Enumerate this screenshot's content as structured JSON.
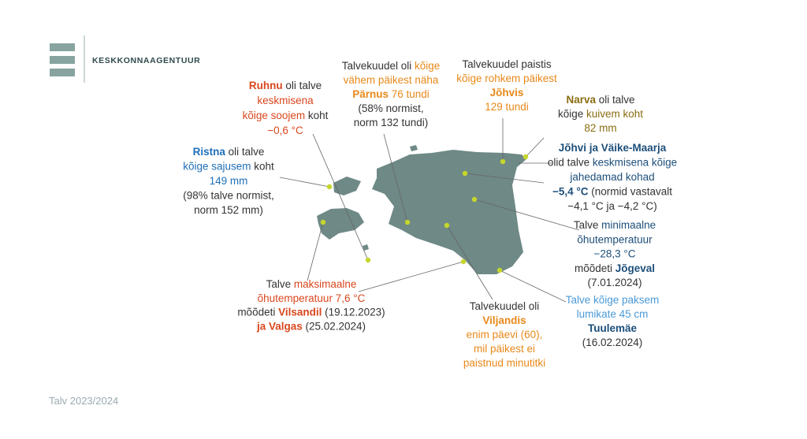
{
  "header": {
    "brand": "KESKKONNAAGENTUUR"
  },
  "footer": "Talv 2023/2024",
  "annotations": [
    {
      "lines": [
        [
          {
            "text": "Ruhnu",
            "color": "#d9471e",
            "bold": true
          },
          " oli talve"
        ],
        [
          {
            "text": "keskmisena",
            "color": "#d9471e"
          }
        ],
        [
          {
            "text": "kõige soojem",
            "color": "#d9471e"
          },
          " koht"
        ],
        [
          {
            "text": "−0,6 °C",
            "color": "#d9471e"
          }
        ]
      ]
    },
    {
      "lines": [
        [
          {
            "text": "Ristna",
            "color": "#1f6fb8",
            "bold": true
          },
          " oli talve"
        ],
        [
          {
            "text": "kõige sajusem",
            "color": "#1f6fb8"
          },
          " koht"
        ],
        [
          {
            "text": "149 mm",
            "color": "#1f6fb8"
          }
        ],
        [
          "(98% talve normist,"
        ],
        [
          "norm 152 mm)"
        ]
      ]
    },
    {
      "lines": [
        [
          "Talvekuudel oli ",
          {
            "text": "kõige",
            "color": "#e8891a"
          }
        ],
        [
          {
            "text": "vähem päikest näha",
            "color": "#e8891a"
          }
        ],
        [
          {
            "text": "Pärnus",
            "color": "#e8891a",
            "bold": true
          },
          {
            "text": " 76 tundi",
            "color": "#e8891a"
          }
        ],
        [
          "(58% normist,"
        ],
        [
          "norm 132 tundi)"
        ]
      ]
    },
    {
      "lines": [
        [
          "Talvekuudel paistis"
        ],
        [
          {
            "text": "kõige rohkem päikest",
            "color": "#e8891a"
          }
        ],
        [
          {
            "text": "Jõhvis",
            "color": "#e8891a",
            "bold": true
          }
        ],
        [
          {
            "text": "129 tundi",
            "color": "#e8891a"
          }
        ]
      ]
    },
    {
      "lines": [
        [
          {
            "text": "Narva",
            "color": "#8a6d12",
            "bold": true
          },
          " oli talve"
        ],
        [
          "kõige ",
          {
            "text": "kuivem koht",
            "color": "#8a6d12"
          }
        ],
        [
          {
            "text": "82 mm",
            "color": "#8a6d12"
          }
        ]
      ]
    },
    {
      "lines": [
        [
          {
            "text": "Jõhvi ja Väike-Maarja",
            "color": "#1d4f7a",
            "bold": true
          }
        ],
        [
          "olid talve ",
          {
            "text": "keskmisena kõige",
            "color": "#1d4f7a"
          }
        ],
        [
          {
            "text": "jahedamad kohad",
            "color": "#1d4f7a"
          }
        ],
        [
          {
            "text": "−5,4 °C",
            "color": "#1d4f7a",
            "bold": true
          },
          " (normid vastavalt"
        ],
        [
          "−4,1 °C ja −4,2 °C)"
        ]
      ]
    },
    {
      "lines": [
        [
          "Talve ",
          {
            "text": "minimaalne",
            "color": "#1d4f7a"
          }
        ],
        [
          {
            "text": "õhutemperatuur",
            "color": "#1d4f7a"
          }
        ],
        [
          {
            "text": "−28,3 °C",
            "color": "#1d4f7a"
          }
        ],
        [
          "mõõdeti ",
          {
            "text": "Jõgeval",
            "color": "#1d4f7a",
            "bold": true
          }
        ],
        [
          "(7.01.2024)"
        ]
      ]
    },
    {
      "lines": [
        [
          {
            "text": "Talve kõige paksem",
            "color": "#4a9ad8"
          }
        ],
        [
          {
            "text": "lumikate 45 cm",
            "color": "#4a9ad8"
          }
        ],
        [
          {
            "text": "Tuulemäe",
            "color": "#1d4f7a",
            "bold": true
          }
        ],
        [
          "(16.02.2024)"
        ]
      ]
    },
    {
      "lines": [
        [
          "Talvekuudel oli"
        ],
        [
          {
            "text": "Viljandis",
            "color": "#e8891a",
            "bold": true
          }
        ],
        [
          {
            "text": "enim päevi (60),",
            "color": "#e8891a"
          }
        ],
        [
          {
            "text": "mil päikest ei",
            "color": "#e8891a"
          }
        ],
        [
          {
            "text": "paistnud minutitki",
            "color": "#e8891a"
          }
        ]
      ]
    },
    {
      "lines": [
        [
          "Talve ",
          {
            "text": "maksimaalne",
            "color": "#d9471e"
          }
        ],
        [
          {
            "text": "õhutemperatuur 7,6 °C",
            "color": "#d9471e"
          }
        ],
        [
          "mõõdeti ",
          {
            "text": "Vilsandil",
            "color": "#d9471e",
            "bold": true
          },
          " (19.12.2023)"
        ],
        [
          {
            "text": "ja Valgas",
            "color": "#d9471e",
            "bold": true
          },
          " (25.02.2024)"
        ]
      ]
    }
  ]
}
